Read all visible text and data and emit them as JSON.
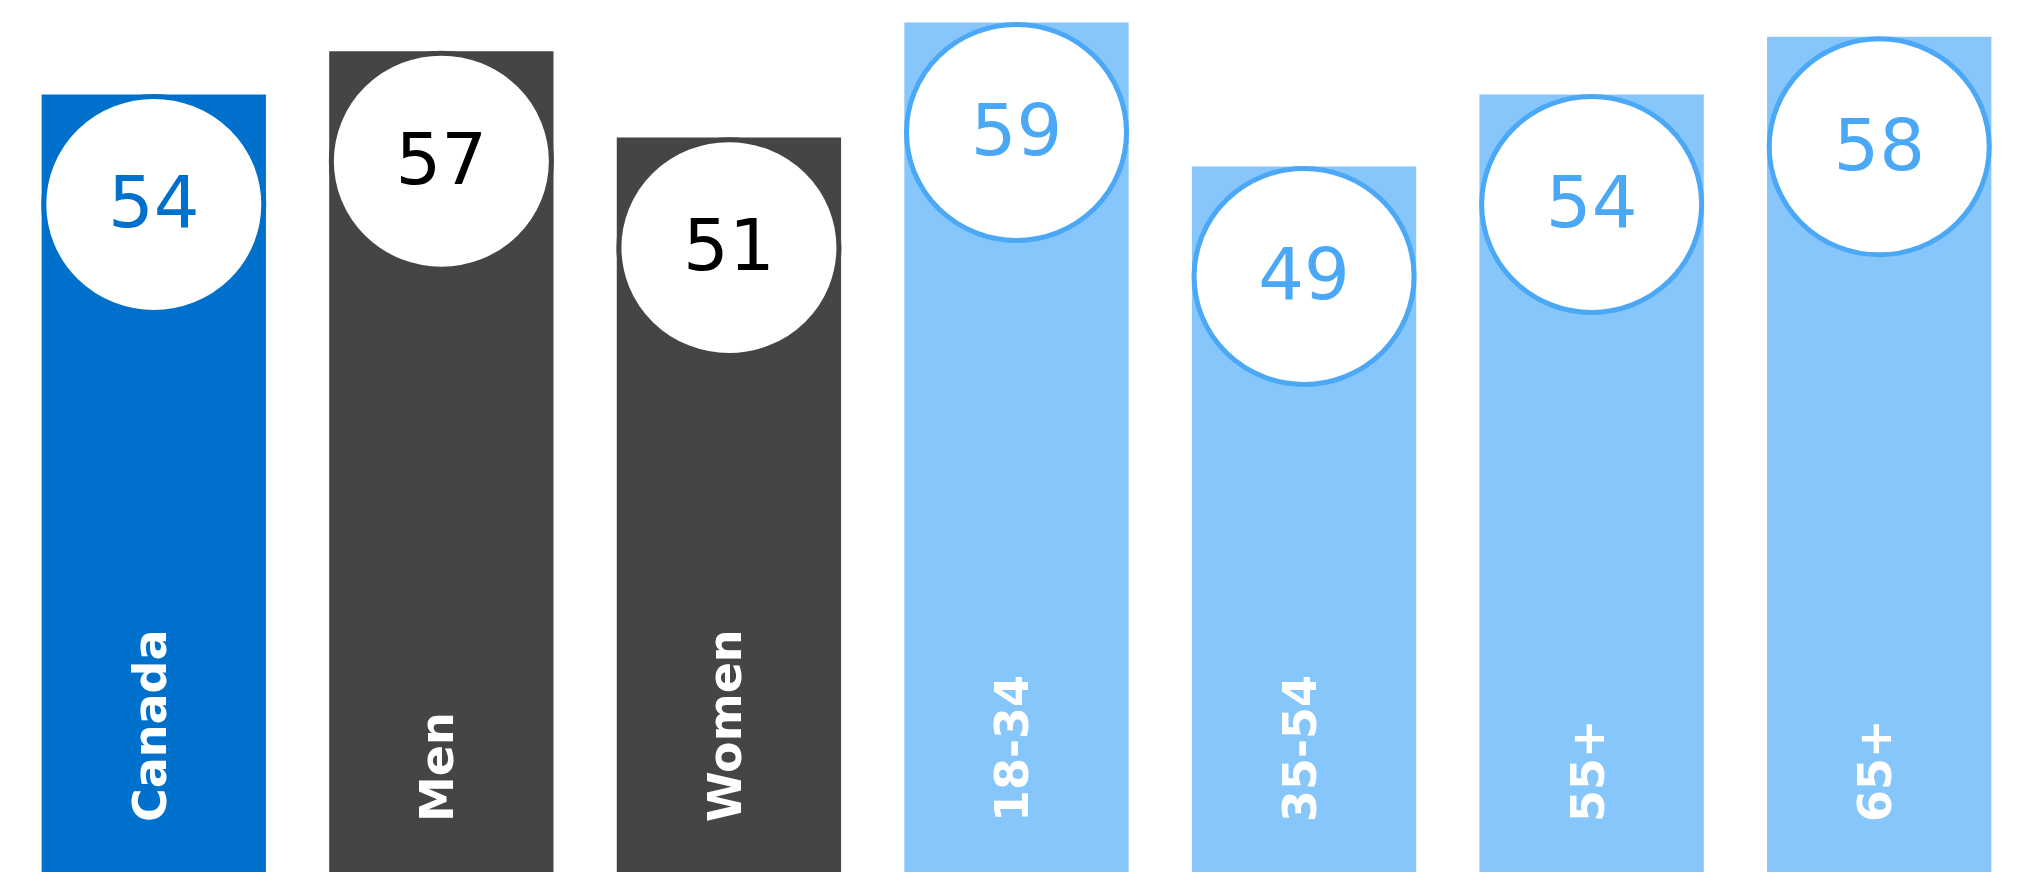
{
  "chart_data": {
    "type": "bar",
    "categories": [
      "Canada",
      "Men",
      "Women",
      "18-34",
      "35-54",
      "55+",
      "65+"
    ],
    "values": [
      54,
      57,
      51,
      59,
      49,
      54,
      58
    ],
    "colors": [
      "#0070cd",
      "#454545",
      "#454545",
      "#86c6fb",
      "#86c6fb",
      "#86c6fb",
      "#86c6fb"
    ],
    "data_labels": true
  }
}
